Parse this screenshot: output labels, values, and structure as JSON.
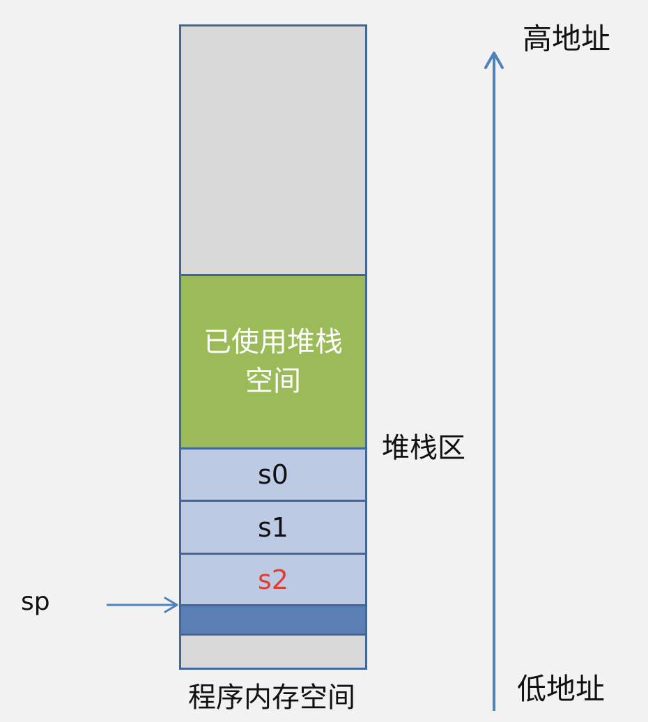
{
  "memory_column": {
    "used_stack_label": "已使用堆栈空间",
    "slots": {
      "s0": "s0",
      "s1": "s1",
      "s2": "s2"
    },
    "caption": "程序内存空间"
  },
  "labels": {
    "stack_region": "堆栈区",
    "high_address": "高地址",
    "low_address": "低地址",
    "stack_pointer": "sp"
  },
  "colors": {
    "background": "#f2f2f2",
    "free_memory": "#d9d9d9",
    "used_stack": "#9bbb59",
    "slot_fill": "#bccbe3",
    "sp_slot_fill": "#5a7fb5",
    "border": "#41669b",
    "arrow": "#4f81bd",
    "highlight_text": "#e03c31"
  }
}
